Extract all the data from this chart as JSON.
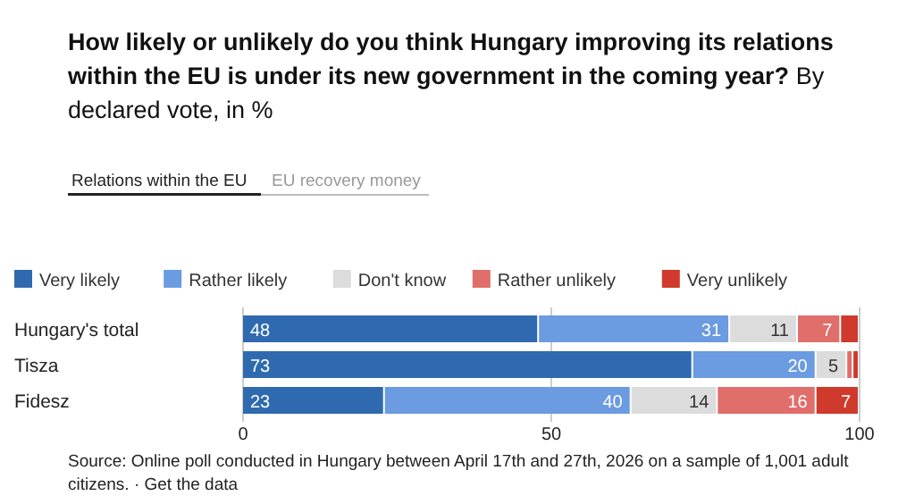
{
  "chart_data": {
    "type": "bar",
    "orientation": "horizontal",
    "stacked": true,
    "title": "How likely or unlikely do you think Hungary improving its relations within the EU is under its new government in the coming year?",
    "subtitle": "By declared vote, in %",
    "categories": [
      "Hungary's total",
      "Tisza",
      "Fidesz"
    ],
    "series": [
      {
        "name": "Very likely",
        "color": "#2f6ab0",
        "values": [
          48,
          73,
          23
        ],
        "value_labels": [
          "48",
          "73",
          "23"
        ]
      },
      {
        "name": "Rather likely",
        "color": "#6b9be0",
        "values": [
          31,
          20,
          40
        ],
        "value_labels": [
          "31",
          "20",
          "40"
        ]
      },
      {
        "name": "Don't know",
        "color": "#dcdcdc",
        "values": [
          11,
          5,
          14
        ],
        "value_labels": [
          "11",
          "5",
          "14"
        ]
      },
      {
        "name": "Rather unlikely",
        "color": "#e06e6b",
        "values": [
          7,
          1,
          16
        ],
        "value_labels": [
          "7",
          null,
          "16"
        ]
      },
      {
        "name": "Very unlikely",
        "color": "#cf3a2c",
        "values": [
          3,
          1,
          7
        ],
        "value_labels": [
          null,
          null,
          "7"
        ]
      }
    ],
    "xlim": [
      0,
      100
    ],
    "xticks": [
      0,
      50,
      100
    ],
    "grid": "x",
    "legend": "top",
    "annotations": [
      "Relations within the EU",
      "EU recovery money",
      "Source: Online poll conducted in Hungary between April 17th and 27th, 2026 on a sample of 1,001 adult citizens. · Get the data"
    ]
  }
}
